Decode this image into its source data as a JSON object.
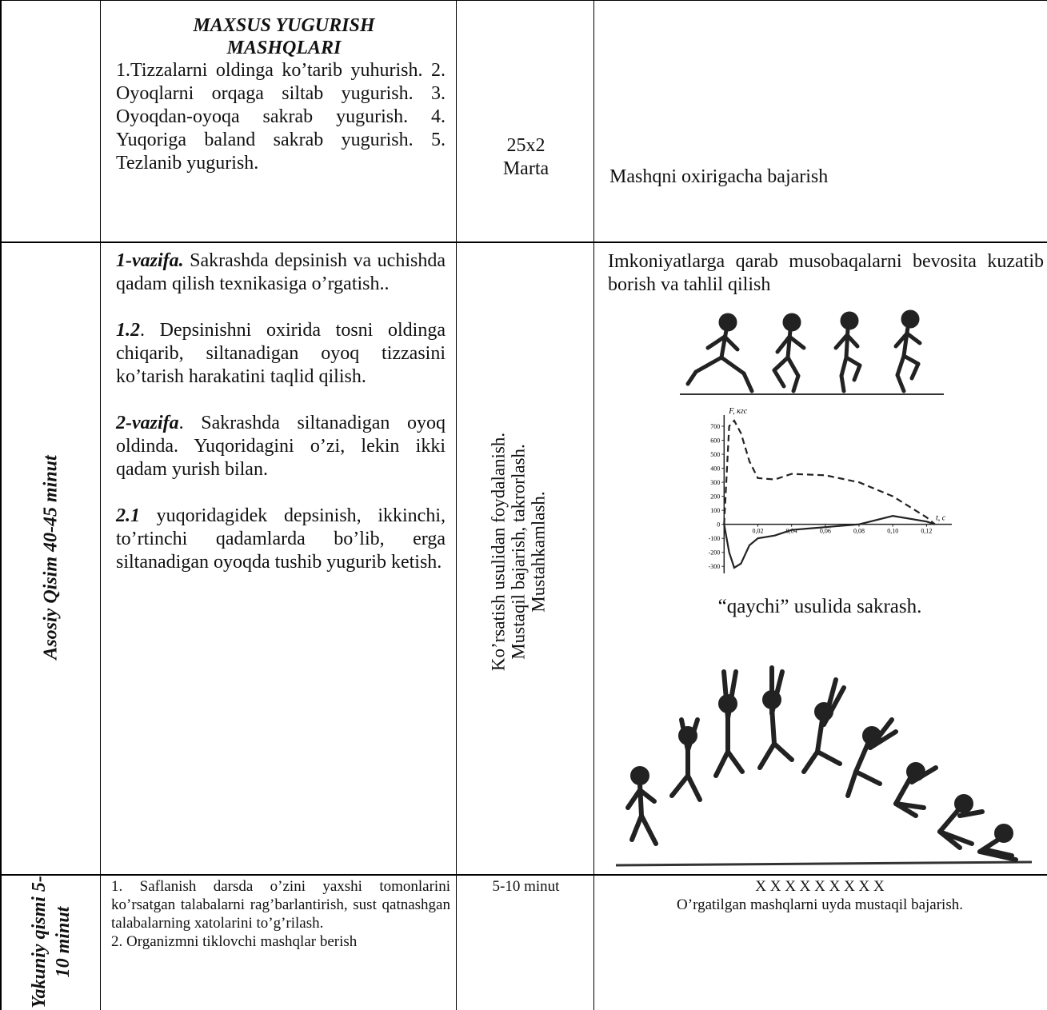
{
  "table": {
    "rows": [
      {
        "content": {
          "title": "MAXSUS YUGURISH MASHQLARI",
          "text": "1.Tizzalarni oldinga ko’tarib yuhurish. 2. Oyoqlarni orqaga siltab yugurish. 3. Oyoqdan-oyoqa sakrab yugurish. 4. Yuqoriga baland sakrab yugurish. 5. Tezlanib yugurish."
        },
        "dosage": [
          "25x2",
          "Marta"
        ],
        "notes": "Mashqni oxirigacha bajarish"
      },
      {
        "section": "Asosiy Qisim 40-45 minut",
        "content": [
          {
            "lead": "1-vazifa.",
            "text": " Sakrashda depsinish va uchishda qadam qilish texnikasiga o’rgatish.."
          },
          {
            "lead": "1.2",
            "text": ". Depsinishni oxirida tosni oldinga chiqarib, siltanadigan oyoq tizzasini ko’tarish harakatini taqlid qilish."
          },
          {
            "lead": "2-vazifa",
            "text": ". Sakrashda siltanadigan oyoq oldinda. Yuqoridagini o’zi, lekin ikki qadam yurish bilan."
          },
          {
            "lead": "2.1",
            "text": " yuqoridagidek depsinish, ikkinchi, to’rtinchi qadamlarda bo’lib, erga siltanadigan oyoqda tushib yugurib ketish."
          }
        ],
        "method": [
          "Ko’rsatish usulidan foydalanish.",
          "Mustaqil bajarish, takrorlash.",
          "Mustahkamlash."
        ],
        "notes": {
          "text": "Imkoniyatlarga qarab musobaqalarni bevosita kuzatib borish va tahlil qilish",
          "figure": {
            "type": "line",
            "ylabel": "F, кгс",
            "xlabel": "t, c",
            "x": [
              0,
              0.003,
              0.006,
              0.01,
              0.015,
              0.02,
              0.03,
              0.04,
              0.06,
              0.08,
              0.1,
              0.12,
              0.125
            ],
            "series": [
              {
                "style": "dashed",
                "color": "#222222",
                "values": [
                  0,
                  700,
                  740,
                  650,
                  450,
                  330,
                  320,
                  360,
                  350,
                  300,
                  200,
                  50,
                  0
                ]
              },
              {
                "style": "solid",
                "color": "#222222",
                "values": [
                  0,
                  -200,
                  -310,
                  -280,
                  -150,
                  -100,
                  -80,
                  -40,
                  -20,
                  0,
                  60,
                  20,
                  0
                ]
              }
            ],
            "xlim": [
              -0.012,
              0.135
            ],
            "ylim": [
              -350,
              780
            ],
            "yticks": [
              700,
              600,
              500,
              400,
              300,
              200,
              100,
              0,
              -100,
              -200,
              -300
            ],
            "xticks": [
              {
                "value": 0.02,
                "label": "0,02"
              },
              {
                "value": 0.04,
                "label": "0,04"
              },
              {
                "value": 0.06,
                "label": "0,06"
              },
              {
                "value": 0.08,
                "label": "0,08"
              },
              {
                "value": 0.1,
                "label": "0,10"
              },
              {
                "value": 0.12,
                "label": "0,12"
              }
            ]
          },
          "caption": "“qaychi”  usulida sakrash."
        }
      },
      {
        "section": [
          "Yakuniy qismi 5-",
          "10 minut"
        ],
        "content": [
          "1. Saflanish darsda o’zini yaxshi tomonlarini ko’rsatgan talabalarni rag’barlantirish, sust qatnashgan talabalarning xatolarini to’g’rilash.",
          "2. Organizmni tiklovchi mashqlar berish"
        ],
        "dosage": "5-10 minut",
        "notes": [
          "X X X X X X X X X",
          "O’rgatilgan mashqlarni uyda mustaqil bajarish."
        ]
      }
    ]
  }
}
